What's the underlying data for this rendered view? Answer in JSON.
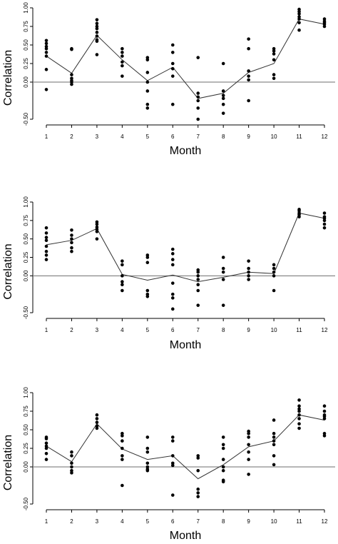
{
  "chart_data": [
    {
      "type": "scatter",
      "xlabel": "Month",
      "ylabel": "Correlation",
      "ylim": [
        -0.5,
        1.0
      ],
      "yticks": [
        "1.00",
        "0.75",
        "0.50",
        "0.25",
        "0.00",
        "-0.50"
      ],
      "xticks": [
        "1",
        "2",
        "3",
        "4",
        "5",
        "6",
        "7",
        "8",
        "9",
        "10",
        "11",
        "12"
      ],
      "reference_line": 0,
      "line": [
        0.35,
        0.12,
        0.63,
        0.3,
        0.02,
        0.2,
        -0.22,
        -0.15,
        0.13,
        0.25,
        0.85,
        0.78
      ],
      "points": [
        [
          0.56,
          0.52,
          0.48,
          0.45,
          0.4,
          0.35,
          0.17,
          -0.1
        ],
        [
          0.45,
          0.44,
          0.1,
          0.05,
          0.02,
          0.0,
          -0.03
        ],
        [
          0.84,
          0.79,
          0.75,
          0.72,
          0.67,
          0.62,
          0.57,
          0.55,
          0.37
        ],
        [
          0.45,
          0.4,
          0.35,
          0.27,
          0.22,
          0.08
        ],
        [
          0.33,
          0.3,
          0.13,
          0.0,
          -0.12,
          -0.3,
          -0.35
        ],
        [
          0.5,
          0.4,
          0.25,
          0.18,
          0.08,
          -0.3
        ],
        [
          0.33,
          -0.15,
          -0.2,
          -0.25,
          -0.35,
          -0.5
        ],
        [
          0.25,
          -0.12,
          -0.18,
          -0.22,
          -0.3,
          -0.42
        ],
        [
          0.58,
          0.45,
          0.15,
          0.08,
          0.03,
          -0.25
        ],
        [
          0.45,
          0.42,
          0.38,
          0.3,
          0.1,
          0.05
        ],
        [
          0.98,
          0.95,
          0.92,
          0.88,
          0.85,
          0.8,
          0.7
        ],
        [
          0.85,
          0.82,
          0.8,
          0.78,
          0.75
        ]
      ]
    },
    {
      "type": "scatter",
      "xlabel": "Month",
      "ylabel": "Correlation",
      "ylim": [
        -0.5,
        1.0
      ],
      "yticks": [
        "1.00",
        "0.75",
        "0.50",
        "0.25",
        "0.00",
        "-0.50"
      ],
      "xticks": [
        "1",
        "2",
        "3",
        "4",
        "5",
        "6",
        "7",
        "8",
        "9",
        "10",
        "11",
        "12"
      ],
      "reference_line": 0,
      "line": [
        0.42,
        0.48,
        0.64,
        0.02,
        -0.06,
        0.01,
        -0.08,
        -0.02,
        0.05,
        0.03,
        0.85,
        0.78
      ],
      "points": [
        [
          0.65,
          0.58,
          0.52,
          0.48,
          0.4,
          0.33,
          0.28,
          0.22
        ],
        [
          0.62,
          0.55,
          0.5,
          0.45,
          0.38,
          0.33
        ],
        [
          0.73,
          0.7,
          0.66,
          0.63,
          0.6,
          0.5
        ],
        [
          0.2,
          0.15,
          0.0,
          -0.08,
          -0.12,
          -0.2
        ],
        [
          0.28,
          0.25,
          0.18,
          -0.2,
          -0.25,
          -0.28
        ],
        [
          0.36,
          0.3,
          0.22,
          0.15,
          -0.1,
          -0.25,
          -0.3,
          -0.45
        ],
        [
          0.08,
          0.05,
          0.0,
          -0.05,
          -0.12,
          -0.2,
          -0.4
        ],
        [
          0.25,
          0.1,
          0.05,
          -0.05,
          -0.4
        ],
        [
          0.2,
          0.1,
          0.05,
          0.0,
          -0.05
        ],
        [
          0.15,
          0.1,
          0.05,
          0.0,
          -0.2
        ],
        [
          0.9,
          0.88,
          0.85,
          0.83,
          0.8
        ],
        [
          0.85,
          0.8,
          0.78,
          0.75,
          0.7,
          0.65
        ]
      ]
    },
    {
      "type": "scatter",
      "xlabel": "Month",
      "ylabel": "Correlation",
      "ylim": [
        -0.5,
        1.0
      ],
      "yticks": [
        "1.00",
        "0.75",
        "0.50",
        "0.25",
        "0.00",
        "-0.50"
      ],
      "xticks": [
        "1",
        "2",
        "3",
        "4",
        "5",
        "6",
        "7",
        "8",
        "9",
        "10",
        "11",
        "12"
      ],
      "reference_line": 0,
      "line": [
        0.28,
        0.07,
        0.58,
        0.24,
        0.1,
        0.15,
        -0.16,
        0.03,
        0.27,
        0.35,
        0.7,
        0.63
      ],
      "points": [
        [
          0.4,
          0.38,
          0.32,
          0.28,
          0.25,
          0.18,
          0.1
        ],
        [
          0.2,
          0.15,
          0.05,
          0.0,
          -0.05,
          -0.08
        ],
        [
          0.7,
          0.65,
          0.6,
          0.55,
          0.52
        ],
        [
          0.45,
          0.42,
          0.35,
          0.25,
          0.15,
          0.1,
          -0.25
        ],
        [
          0.4,
          0.25,
          0.2,
          0.05,
          0.0,
          -0.03,
          -0.05
        ],
        [
          0.4,
          0.35,
          0.15,
          0.05,
          0.02,
          -0.38
        ],
        [
          0.15,
          0.12,
          -0.05,
          -0.3,
          -0.35,
          -0.4
        ],
        [
          0.4,
          0.3,
          0.25,
          0.1,
          0.0,
          -0.05,
          -0.18,
          -0.2
        ],
        [
          0.48,
          0.45,
          0.4,
          0.3,
          0.2,
          0.1,
          -0.1
        ],
        [
          0.63,
          0.45,
          0.4,
          0.35,
          0.3,
          0.15,
          0.03
        ],
        [
          0.9,
          0.82,
          0.78,
          0.75,
          0.7,
          0.65,
          0.58,
          0.52
        ],
        [
          0.82,
          0.75,
          0.7,
          0.68,
          0.65,
          0.45,
          0.42
        ]
      ]
    }
  ]
}
